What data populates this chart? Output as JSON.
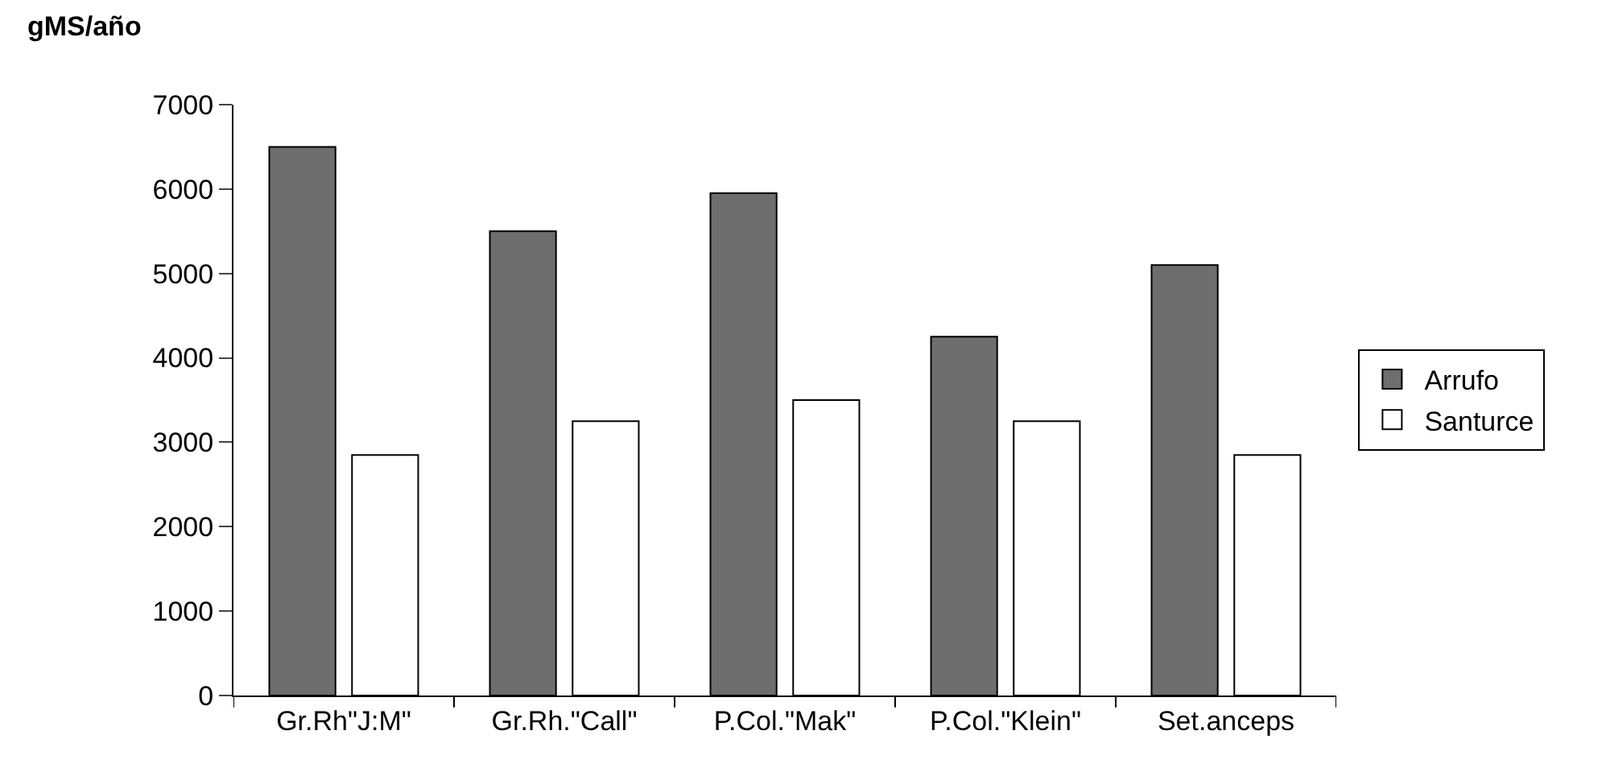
{
  "chart_data": {
    "type": "bar",
    "ylabel": "gMS/año",
    "categories": [
      "Gr.Rh\"J:M\"",
      "Gr.Rh.\"Call\"",
      "P.Col.\"Mak\"",
      "P.Col.\"Klein\"",
      "Set.anceps"
    ],
    "series": [
      {
        "name": "Arrufo",
        "color": "#6e6e6e",
        "values": [
          6500,
          5500,
          5950,
          4250,
          5100
        ]
      },
      {
        "name": "Santurce",
        "color": "#ffffff",
        "values": [
          2850,
          3250,
          3500,
          3250,
          2850
        ]
      }
    ],
    "ylim": [
      0,
      7000
    ],
    "yticks": [
      0,
      1000,
      2000,
      3000,
      4000,
      5000,
      6000,
      7000
    ],
    "legend": "right"
  }
}
